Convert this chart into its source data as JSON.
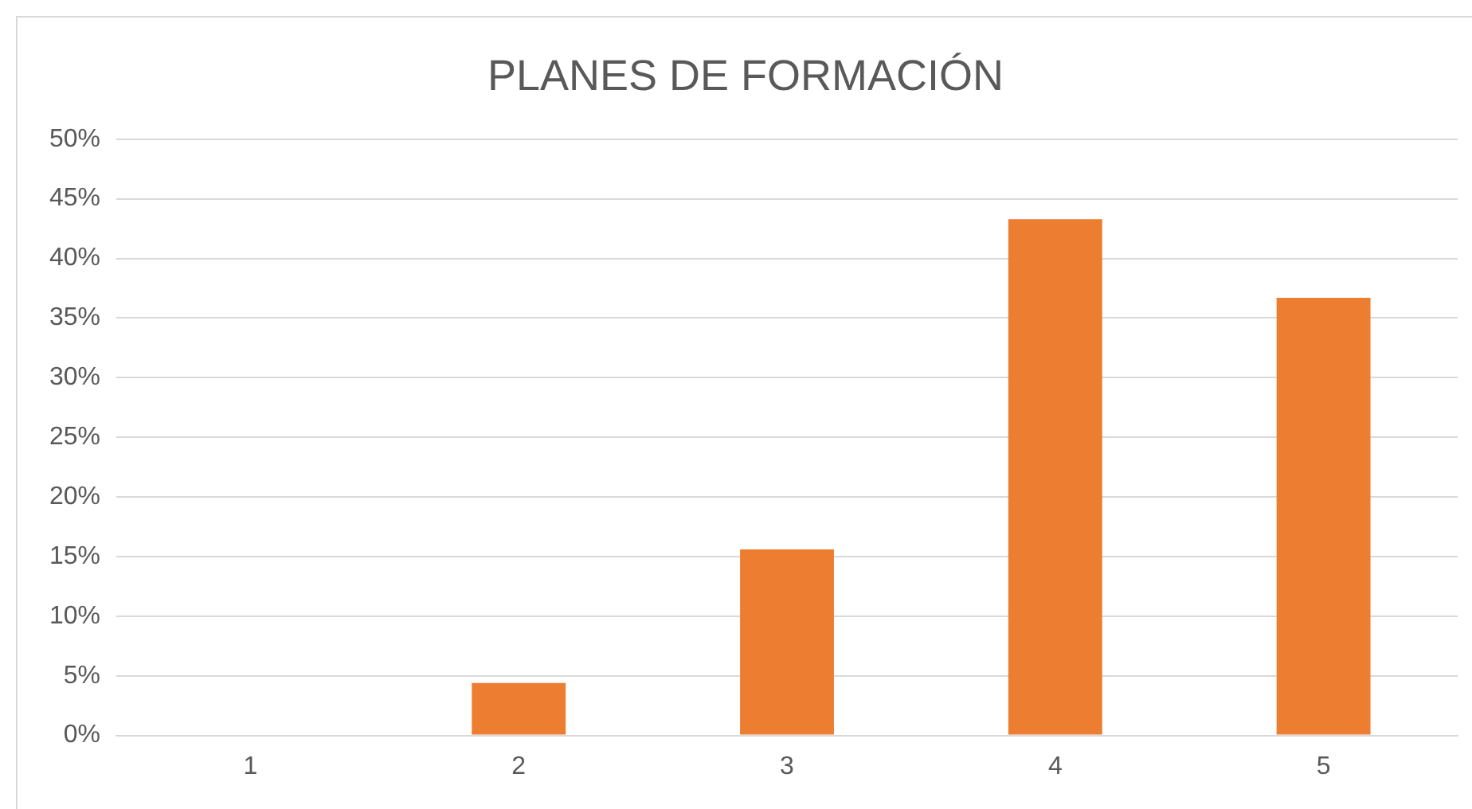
{
  "chart_data": {
    "type": "bar",
    "title": "PLANES DE FORMACIÓN",
    "categories": [
      "1",
      "2",
      "3",
      "4",
      "5"
    ],
    "values": [
      0,
      4.4,
      15.6,
      43.3,
      36.7
    ],
    "color": "#ed7d31",
    "ylim": [
      0,
      50
    ],
    "yticks": [
      {
        "value": 0,
        "label": "0%"
      },
      {
        "value": 5,
        "label": "5%"
      },
      {
        "value": 10,
        "label": "10%"
      },
      {
        "value": 15,
        "label": "15%"
      },
      {
        "value": 20,
        "label": "20%"
      },
      {
        "value": 25,
        "label": "25%"
      },
      {
        "value": 30,
        "label": "30%"
      },
      {
        "value": 35,
        "label": "35%"
      },
      {
        "value": 40,
        "label": "40%"
      },
      {
        "value": 45,
        "label": "45%"
      },
      {
        "value": 50,
        "label": "50%"
      }
    ],
    "grid": "y",
    "legend": false
  }
}
